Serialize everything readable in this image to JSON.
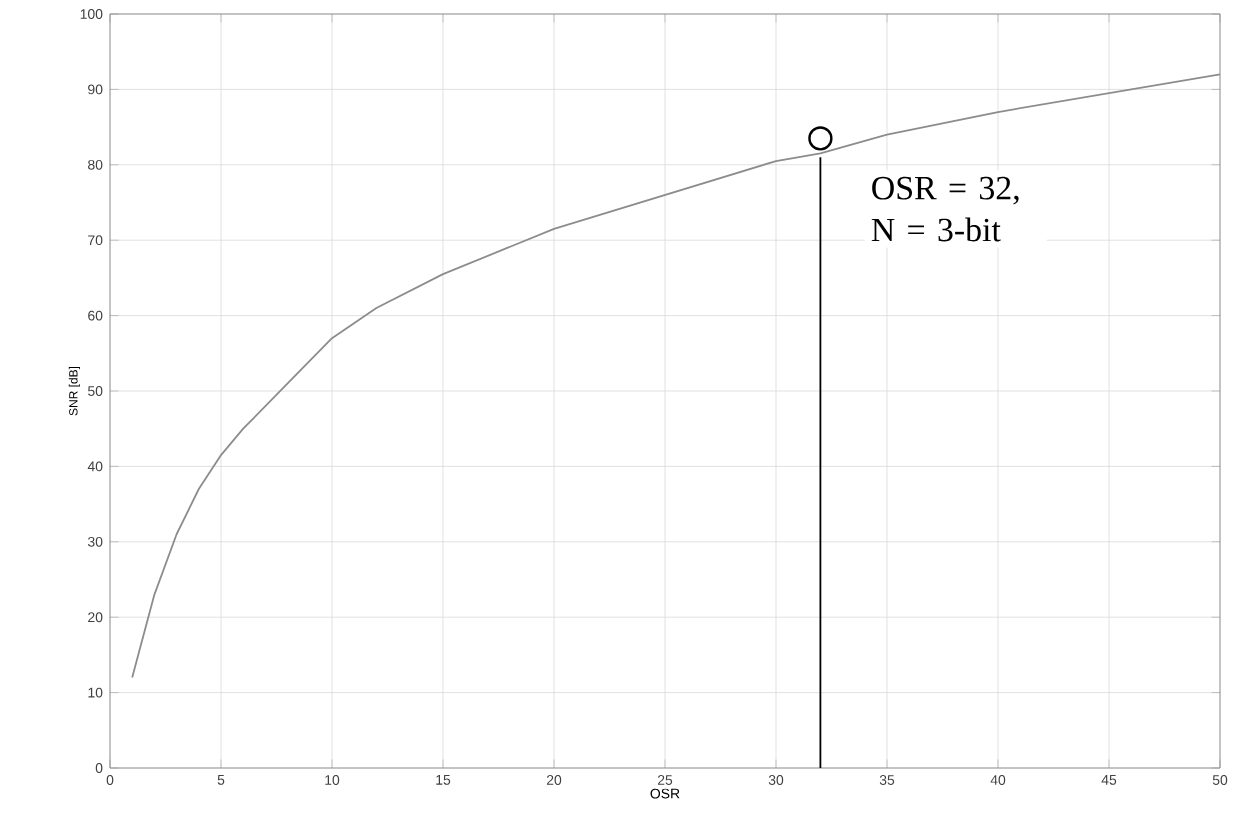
{
  "chart_data": {
    "type": "line",
    "xlabel": "OSR",
    "ylabel": "SNR [dB]",
    "xlim": [
      0,
      50
    ],
    "ylim": [
      0,
      100
    ],
    "xticks": [
      0,
      5,
      10,
      15,
      20,
      25,
      30,
      35,
      40,
      45,
      50
    ],
    "yticks": [
      0,
      10,
      20,
      30,
      40,
      50,
      60,
      70,
      80,
      90,
      100
    ],
    "grid": true,
    "series": [
      {
        "color": "#8c8c8c",
        "marker": "none",
        "x": [
          1,
          2,
          3,
          4,
          5,
          6,
          8,
          10,
          12,
          15,
          20,
          25,
          30,
          32,
          35,
          40,
          45,
          50
        ],
        "values": [
          12,
          23,
          31,
          37,
          41.5,
          45,
          51,
          57,
          61,
          65.5,
          71.5,
          76,
          80.5,
          81.5,
          84,
          87,
          89.5,
          92
        ]
      },
      {
        "color": "#000000",
        "marker": "none",
        "x": [
          32,
          32
        ],
        "values": [
          0,
          81
        ]
      },
      {
        "type": "scatter",
        "color": "#000000",
        "marker": "circle",
        "x": [
          32
        ],
        "values": [
          83.5
        ]
      }
    ],
    "annotations": [
      {
        "text": "OSR = 32, N = 3-bit",
        "x": 32,
        "y": 83.5
      }
    ]
  }
}
